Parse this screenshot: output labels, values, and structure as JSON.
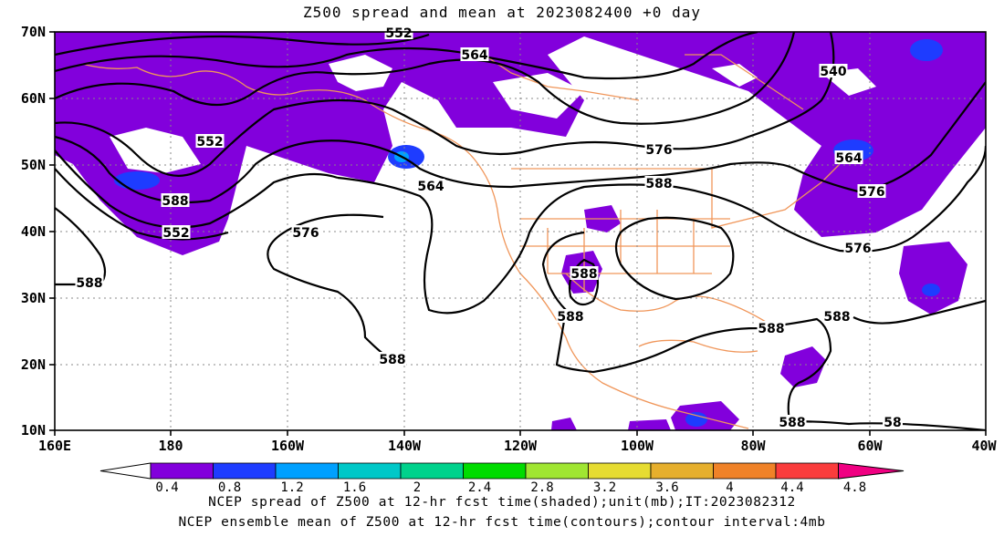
{
  "title": "Z500 spread and mean at 2023082400 +0 day",
  "map": {
    "lat_labels": [
      "70N",
      "60N",
      "50N",
      "40N",
      "30N",
      "20N",
      "10N"
    ],
    "lon_labels": [
      "160E",
      "180",
      "160W",
      "140W",
      "120W",
      "100W",
      "80W",
      "60W",
      "40W"
    ],
    "lat_range": [
      10,
      70
    ],
    "lon_range": [
      "160E",
      "40W"
    ],
    "contour_labels": [
      "552",
      "564",
      "540",
      "552",
      "564",
      "576",
      "588",
      "552",
      "564",
      "576",
      "576",
      "576",
      "588",
      "588",
      "588",
      "588",
      "588",
      "588",
      "588",
      "588",
      "58"
    ],
    "colors": {
      "shade_low": "#8200dc",
      "shade_mid": "#1e3cff",
      "coast": "#f0965a",
      "contour": "#000000"
    }
  },
  "colorbar": {
    "labels": [
      "0.4",
      "0.8",
      "1.2",
      "1.6",
      "2",
      "2.4",
      "2.8",
      "3.2",
      "3.6",
      "4",
      "4.4",
      "4.8"
    ],
    "colors": [
      "#8200dc",
      "#1e3cff",
      "#00a0ff",
      "#00c8c8",
      "#00d28c",
      "#00dc00",
      "#a0e632",
      "#e6dc32",
      "#e6af2d",
      "#f08228",
      "#fa3c3c",
      "#f00082"
    ]
  },
  "captions": {
    "line1": "NCEP spread of Z500 at 12-hr fcst time(shaded);unit(mb);IT:2023082312",
    "line2": "NCEP ensemble mean of Z500 at 12-hr fcst time(contours);contour interval:4mb"
  }
}
